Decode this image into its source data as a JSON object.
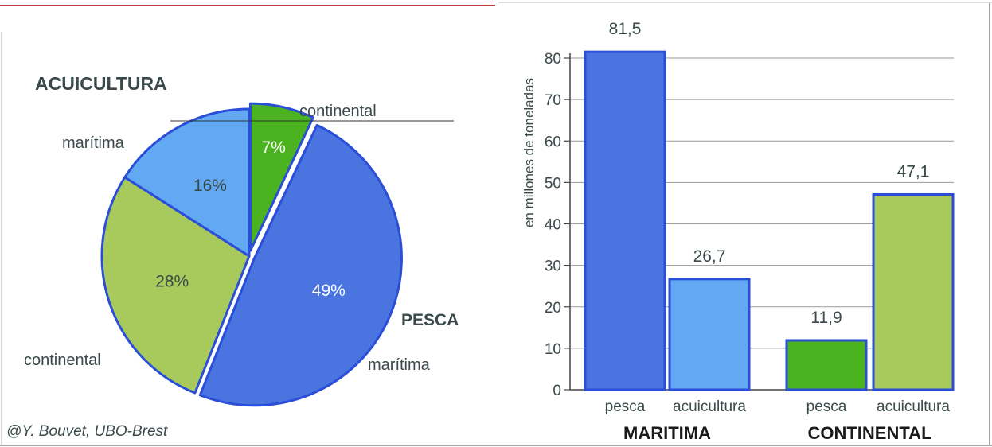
{
  "colors": {
    "pesca_maritima": "#4A74E0",
    "acuicultura_maritima": "#62A8F2",
    "pesca_continental": "#4CB320",
    "acuicultura_continental": "#A8CA5C",
    "outline": "#2A4ED8",
    "grid": "#9a9a9a",
    "label_text": "#3a4a4a"
  },
  "credit": "@Y. Bouvet, UBO-Brest",
  "pie": {
    "group_labels": {
      "acuicultura": "ACUICULTURA",
      "pesca": "PESCA"
    },
    "slice_labels": {
      "continental_top": "continental",
      "maritima_left": "marítima",
      "continental_left": "continental",
      "maritima_right": "marítima"
    }
  },
  "chart_data": [
    {
      "type": "pie",
      "slices": [
        {
          "label": "pesca continental",
          "value": 7,
          "display": "7%",
          "color": "#4CB320"
        },
        {
          "label": "pesca marítima",
          "value": 49,
          "display": "49%",
          "color": "#4A74E0"
        },
        {
          "label": "acuicultura continental",
          "value": 28,
          "display": "28%",
          "color": "#A8CA5C"
        },
        {
          "label": "acuicultura marítima",
          "value": 16,
          "display": "16%",
          "color": "#62A8F2"
        }
      ]
    },
    {
      "type": "bar",
      "ylabel": "en millones de toneladas",
      "ylim": [
        0,
        80
      ],
      "yticks": [
        0,
        10,
        20,
        30,
        40,
        50,
        60,
        70,
        80
      ],
      "grid": true,
      "groups": [
        "MARITIMA",
        "CONTINENTAL"
      ],
      "bars": [
        {
          "group": "MARITIMA",
          "category": "pesca",
          "value": 81.5,
          "display": "81,5",
          "color": "#4A74E0"
        },
        {
          "group": "MARITIMA",
          "category": "acuicultura",
          "value": 26.7,
          "display": "26,7",
          "color": "#62A8F2"
        },
        {
          "group": "CONTINENTAL",
          "category": "pesca",
          "value": 11.9,
          "display": "11,9",
          "color": "#4CB320"
        },
        {
          "group": "CONTINENTAL",
          "category": "acuicultura",
          "value": 47.1,
          "display": "47,1",
          "color": "#A8CA5C"
        }
      ]
    }
  ]
}
